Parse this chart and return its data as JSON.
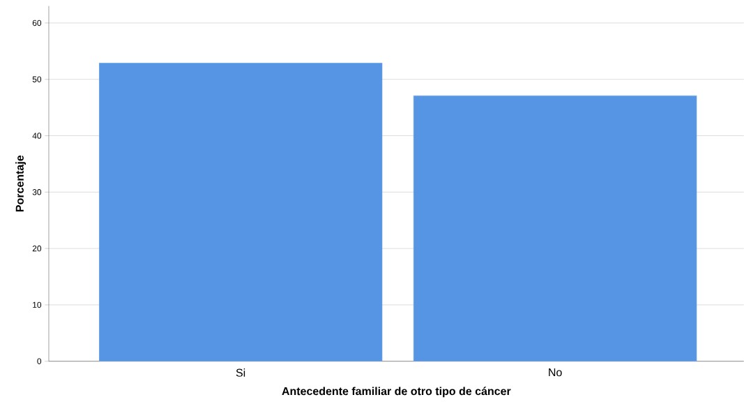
{
  "chart_data": {
    "type": "bar",
    "categories": [
      "Si",
      "No"
    ],
    "values": [
      52.9,
      47.1
    ],
    "color": "#5595e3",
    "xlabel": "Antecedente familiar de otro tipo de cáncer",
    "ylabel": "Porcentaje",
    "ylim": [
      0,
      63
    ],
    "yticks": [
      0,
      10,
      20,
      30,
      40,
      50,
      60
    ],
    "grid": "y"
  }
}
